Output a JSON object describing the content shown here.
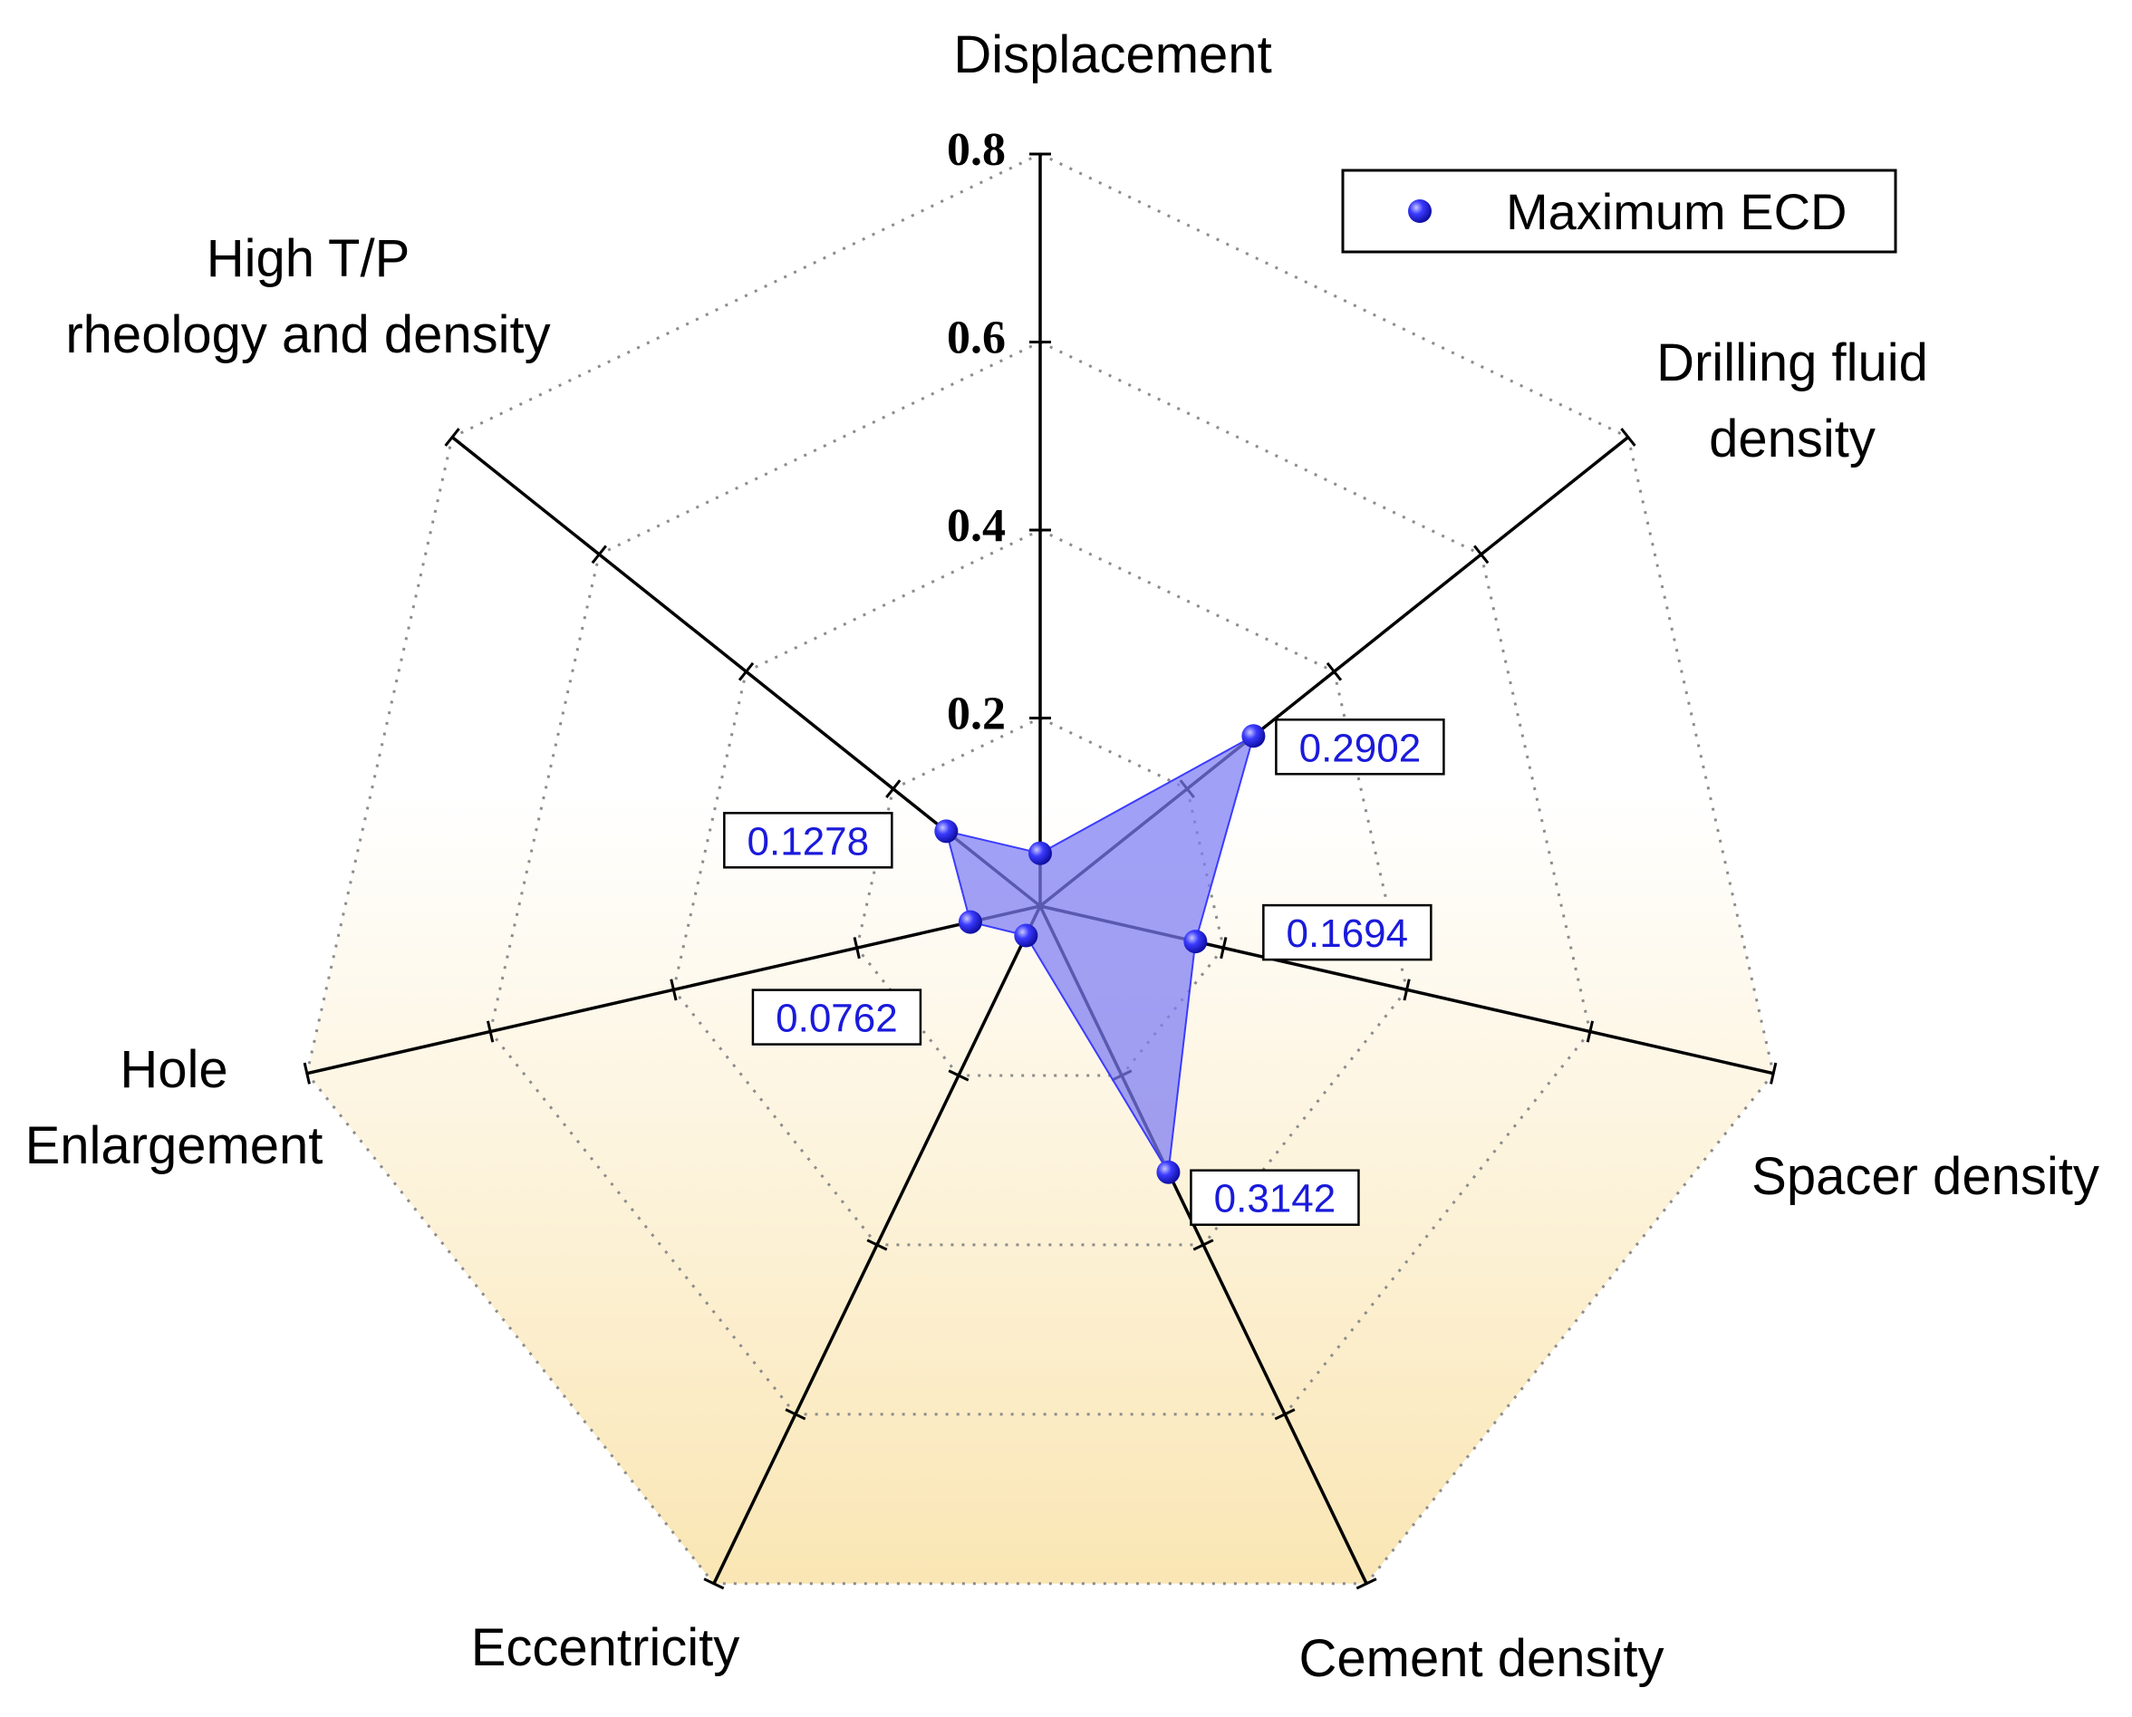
{
  "chart_data": {
    "type": "radar",
    "axes": [
      {
        "label": [
          "Displacement"
        ]
      },
      {
        "label": [
          "Drilling fluid",
          "density"
        ]
      },
      {
        "label": [
          "Spacer density"
        ]
      },
      {
        "label": [
          "Cement density"
        ]
      },
      {
        "label": [
          "Eccentricity"
        ]
      },
      {
        "label": [
          "Hole",
          "Enlargement"
        ]
      },
      {
        "label": [
          "High T/P",
          "rheology and density"
        ]
      }
    ],
    "r_range": [
      0,
      0.8
    ],
    "ticks": [
      0.2,
      0.4,
      0.6,
      0.8
    ],
    "tick_labels": [
      "0.2",
      "0.4",
      "0.6",
      "0.8"
    ],
    "grid": true,
    "grid_style": "dotted polygon",
    "legend_position": "top-right",
    "series": [
      {
        "name": "Maximum ECD",
        "color": "#3b3bff",
        "fill": "#7b7bf4",
        "values": [
          0.0562,
          0.2902,
          0.1694,
          0.3142,
          0.0348,
          0.0762,
          0.1278
        ],
        "data_labels": [
          "",
          "0.2902",
          "0.1694",
          "0.3142",
          "",
          "0.0762",
          "0.1278"
        ]
      }
    ],
    "background_gradient": [
      "#ffffff",
      "#fae6b4"
    ]
  }
}
